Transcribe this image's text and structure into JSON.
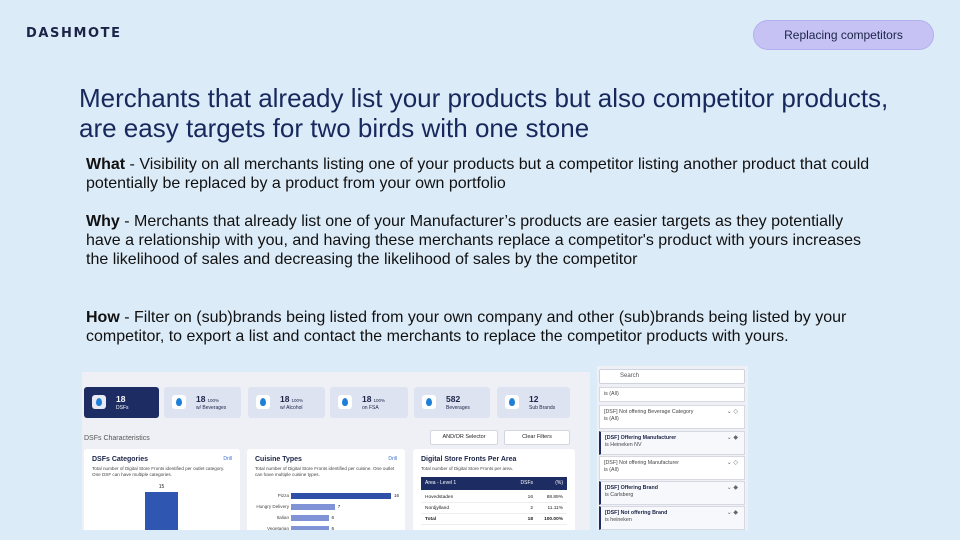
{
  "header": {
    "logo": "DASHMOTE",
    "tag": "Replacing competitors"
  },
  "title": "Merchants that already list your products but also competitor products, are easy targets for two birds with one stone",
  "sections": [
    {
      "label": "What",
      "text": " - Visibility on all merchants listing one of your products but a competitor listing another product that could potentially be replaced by a product from your own portfolio"
    },
    {
      "label": "Why",
      "text": " - Merchants that already list one of your Manufacturer’s products are easier targets as they potentially have a relationship with you, and having these merchants replace a competitor's product with yours increases the likelihood of sales and decreasing the likelihood of sales by the competitor"
    },
    {
      "label": "How",
      "text": " - Filter on (sub)brands being listed from your own company and other (sub)brands being listed by your competitor, to export a list and contact the merchants to replace the competitor products with yours."
    }
  ],
  "dashboard": {
    "kpis": [
      {
        "value": "18",
        "label": "DSFs"
      },
      {
        "value": "18",
        "pct": "100%",
        "label": "w/ Beverages"
      },
      {
        "value": "18",
        "pct": "100%",
        "label": "w/ Alcohol"
      },
      {
        "value": "18",
        "pct": "100%",
        "label": "on FSA"
      },
      {
        "value": "582",
        "label": "Beverages"
      },
      {
        "value": "12",
        "label": "Sub Brands"
      }
    ],
    "section_title": "DSFs Characteristics",
    "buttons": [
      "AND/OR Selector",
      "Clear Filters"
    ],
    "drill": "Drill",
    "categories_card": {
      "title": "DSFs Categories",
      "desc": "Total number of Digital Store Fronts identified per outlet category. One DSF can have multiple categories.",
      "values": [
        15
      ]
    },
    "cuisine_card": {
      "title": "Cuisine Types",
      "desc": "Total number of Digital Store Fronts identified per cuisine. One outlet can have multiple cuisine types.",
      "categories": [
        "Pizza",
        "Hungry Delivery",
        "Italian",
        "Vegetarian"
      ],
      "values": [
        16,
        7,
        6,
        6
      ]
    },
    "area_card": {
      "title": "Digital Store Fronts Per Area",
      "desc": "Total number of Digital Store Fronts per area.",
      "columns": [
        "Area - Level 1",
        "DSFs",
        "(%)"
      ],
      "rows": [
        [
          "Hovedstaden",
          "16",
          "88.89%"
        ],
        [
          "Nordjylland",
          "2",
          "11.11%"
        ],
        [
          "Total",
          "18",
          "100.00%"
        ]
      ]
    }
  },
  "filters": {
    "search": "Search",
    "items": [
      {
        "value": "is (All)"
      },
      {
        "name": "[DSF] Not offering Beverage Category",
        "value": "is (All)"
      },
      {
        "name": "[DSF] Offering Manufacturer",
        "value": "is Heineken NV"
      },
      {
        "name": "[DSF] Not offering Manufacturer",
        "value": "is (All)"
      },
      {
        "name": "[DSF] Offering Brand",
        "value": "is Carlsberg"
      },
      {
        "name": "[DSF] Not offering Brand",
        "value": "is heineken"
      }
    ]
  }
}
